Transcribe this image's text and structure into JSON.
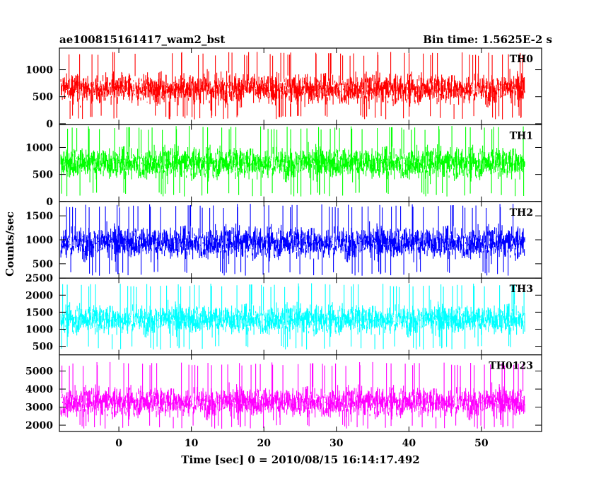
{
  "header": {
    "left_title": "ae100815161417_wam2_bst",
    "right_title": "Bin time: 1.5625E-2 s"
  },
  "axes": {
    "xlabel": "Time [sec] 0 = 2010/08/15 16:14:17.492",
    "ylabel": "Counts/sec"
  },
  "chart_data": {
    "type": "line",
    "grid": false,
    "x_start": -8.0,
    "x_end": 56.0,
    "bin_time": 0.015625,
    "xlim": [
      -8.2,
      58.3
    ],
    "xticks": [
      0,
      10,
      20,
      30,
      40,
      50
    ],
    "series": [
      {
        "name": "TH0",
        "color": "#ff0000",
        "ylim": [
          -20,
          1400
        ],
        "yticks": [
          0,
          500,
          1000
        ],
        "typical_range": [
          80,
          1330
        ],
        "approx_mean": 650
      },
      {
        "name": "TH1",
        "color": "#00ff00",
        "ylim": [
          0,
          1420
        ],
        "yticks": [
          0,
          500,
          1000
        ],
        "typical_range": [
          90,
          1400
        ],
        "approx_mean": 720
      },
      {
        "name": "TH2",
        "color": "#0000ff",
        "ylim": [
          200,
          1800
        ],
        "yticks": [
          500,
          1000,
          1500
        ],
        "typical_range": [
          250,
          1750
        ],
        "approx_mean": 950
      },
      {
        "name": "TH3",
        "color": "#00ffff",
        "ylim": [
          250,
          2500
        ],
        "yticks": [
          500,
          1000,
          1500,
          2000,
          2500
        ],
        "typical_range": [
          400,
          2350
        ],
        "approx_mean": 1300
      },
      {
        "name": "TH0123",
        "color": "#ff00ff",
        "ylim": [
          1650,
          5900
        ],
        "yticks": [
          2000,
          3000,
          4000,
          5000
        ],
        "typical_range": [
          1800,
          5500
        ],
        "approx_mean": 3300
      }
    ]
  }
}
